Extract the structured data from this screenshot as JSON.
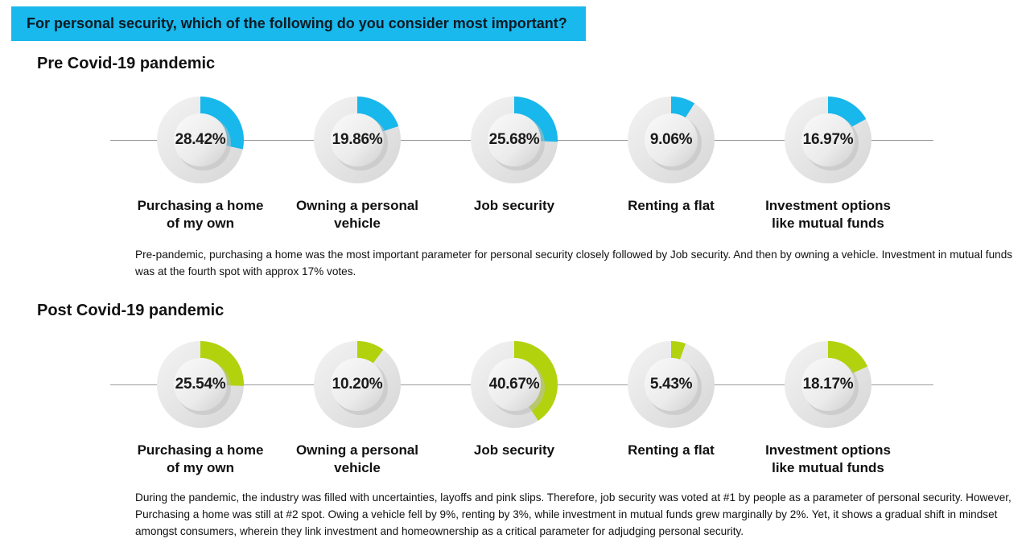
{
  "question": "For personal security, which of the following do you consider most important?",
  "colors": {
    "banner": "#19b8ed",
    "pre_accent": "#18b7ec",
    "post_accent": "#b2d20d",
    "ring": "#e6e6e6"
  },
  "pre": {
    "title": "Pre Covid-19 pandemic",
    "description": "Pre-pandemic, purchasing a home was the most important parameter for personal security closely followed by Job security. And then by owning a vehicle. Investment in mutual funds was at the fourth spot with approx 17% votes."
  },
  "post": {
    "title": "Post Covid-19 pandemic",
    "description": "During the pandemic, the industry was filled with uncertainties, layoffs and pink slips. Therefore, job security was voted at #1 by people as a parameter of personal security. However, Purchasing a home was still at #2 spot. Owing a vehicle fell by 9%, renting by 3%, while investment in mutual funds grew marginally by 2%. Yet, it shows a gradual shift in mindset amongst consumers, wherein they link investment and homeownership as a critical parameter for adjudging personal security."
  },
  "chart_data": [
    {
      "type": "pie",
      "style": "donut",
      "title": "Pre Covid-19 pandemic",
      "categories": [
        "Purchasing a home of my own",
        "Owning a personal vehicle",
        "Job security",
        "Renting a flat",
        "Investment options like mutual funds"
      ],
      "labels": [
        [
          "Purchasing a home",
          "of my own"
        ],
        [
          "Owning a personal",
          "vehicle"
        ],
        [
          "Job security"
        ],
        [
          "Renting a flat"
        ],
        [
          "Investment options",
          "like mutual funds"
        ]
      ],
      "values": [
        28.42,
        19.86,
        25.68,
        9.06,
        16.97
      ],
      "value_labels": [
        "28.42%",
        "19.86%",
        "25.68%",
        "9.06%",
        "16.97%"
      ],
      "color": "#18b7ec"
    },
    {
      "type": "pie",
      "style": "donut",
      "title": "Post Covid-19 pandemic",
      "categories": [
        "Purchasing a home of my own",
        "Owning a personal vehicle",
        "Job security",
        "Renting a flat",
        "Investment options like mutual funds"
      ],
      "labels": [
        [
          "Purchasing a home",
          "of my own"
        ],
        [
          "Owning a personal",
          "vehicle"
        ],
        [
          "Job security"
        ],
        [
          "Renting a flat"
        ],
        [
          "Investment options",
          "like mutual funds"
        ]
      ],
      "values": [
        25.54,
        10.2,
        40.67,
        5.43,
        18.17
      ],
      "value_labels": [
        "25.54%",
        "10.20%",
        "40.67%",
        "5.43%",
        "18.17%"
      ],
      "color": "#b2d20d"
    }
  ]
}
